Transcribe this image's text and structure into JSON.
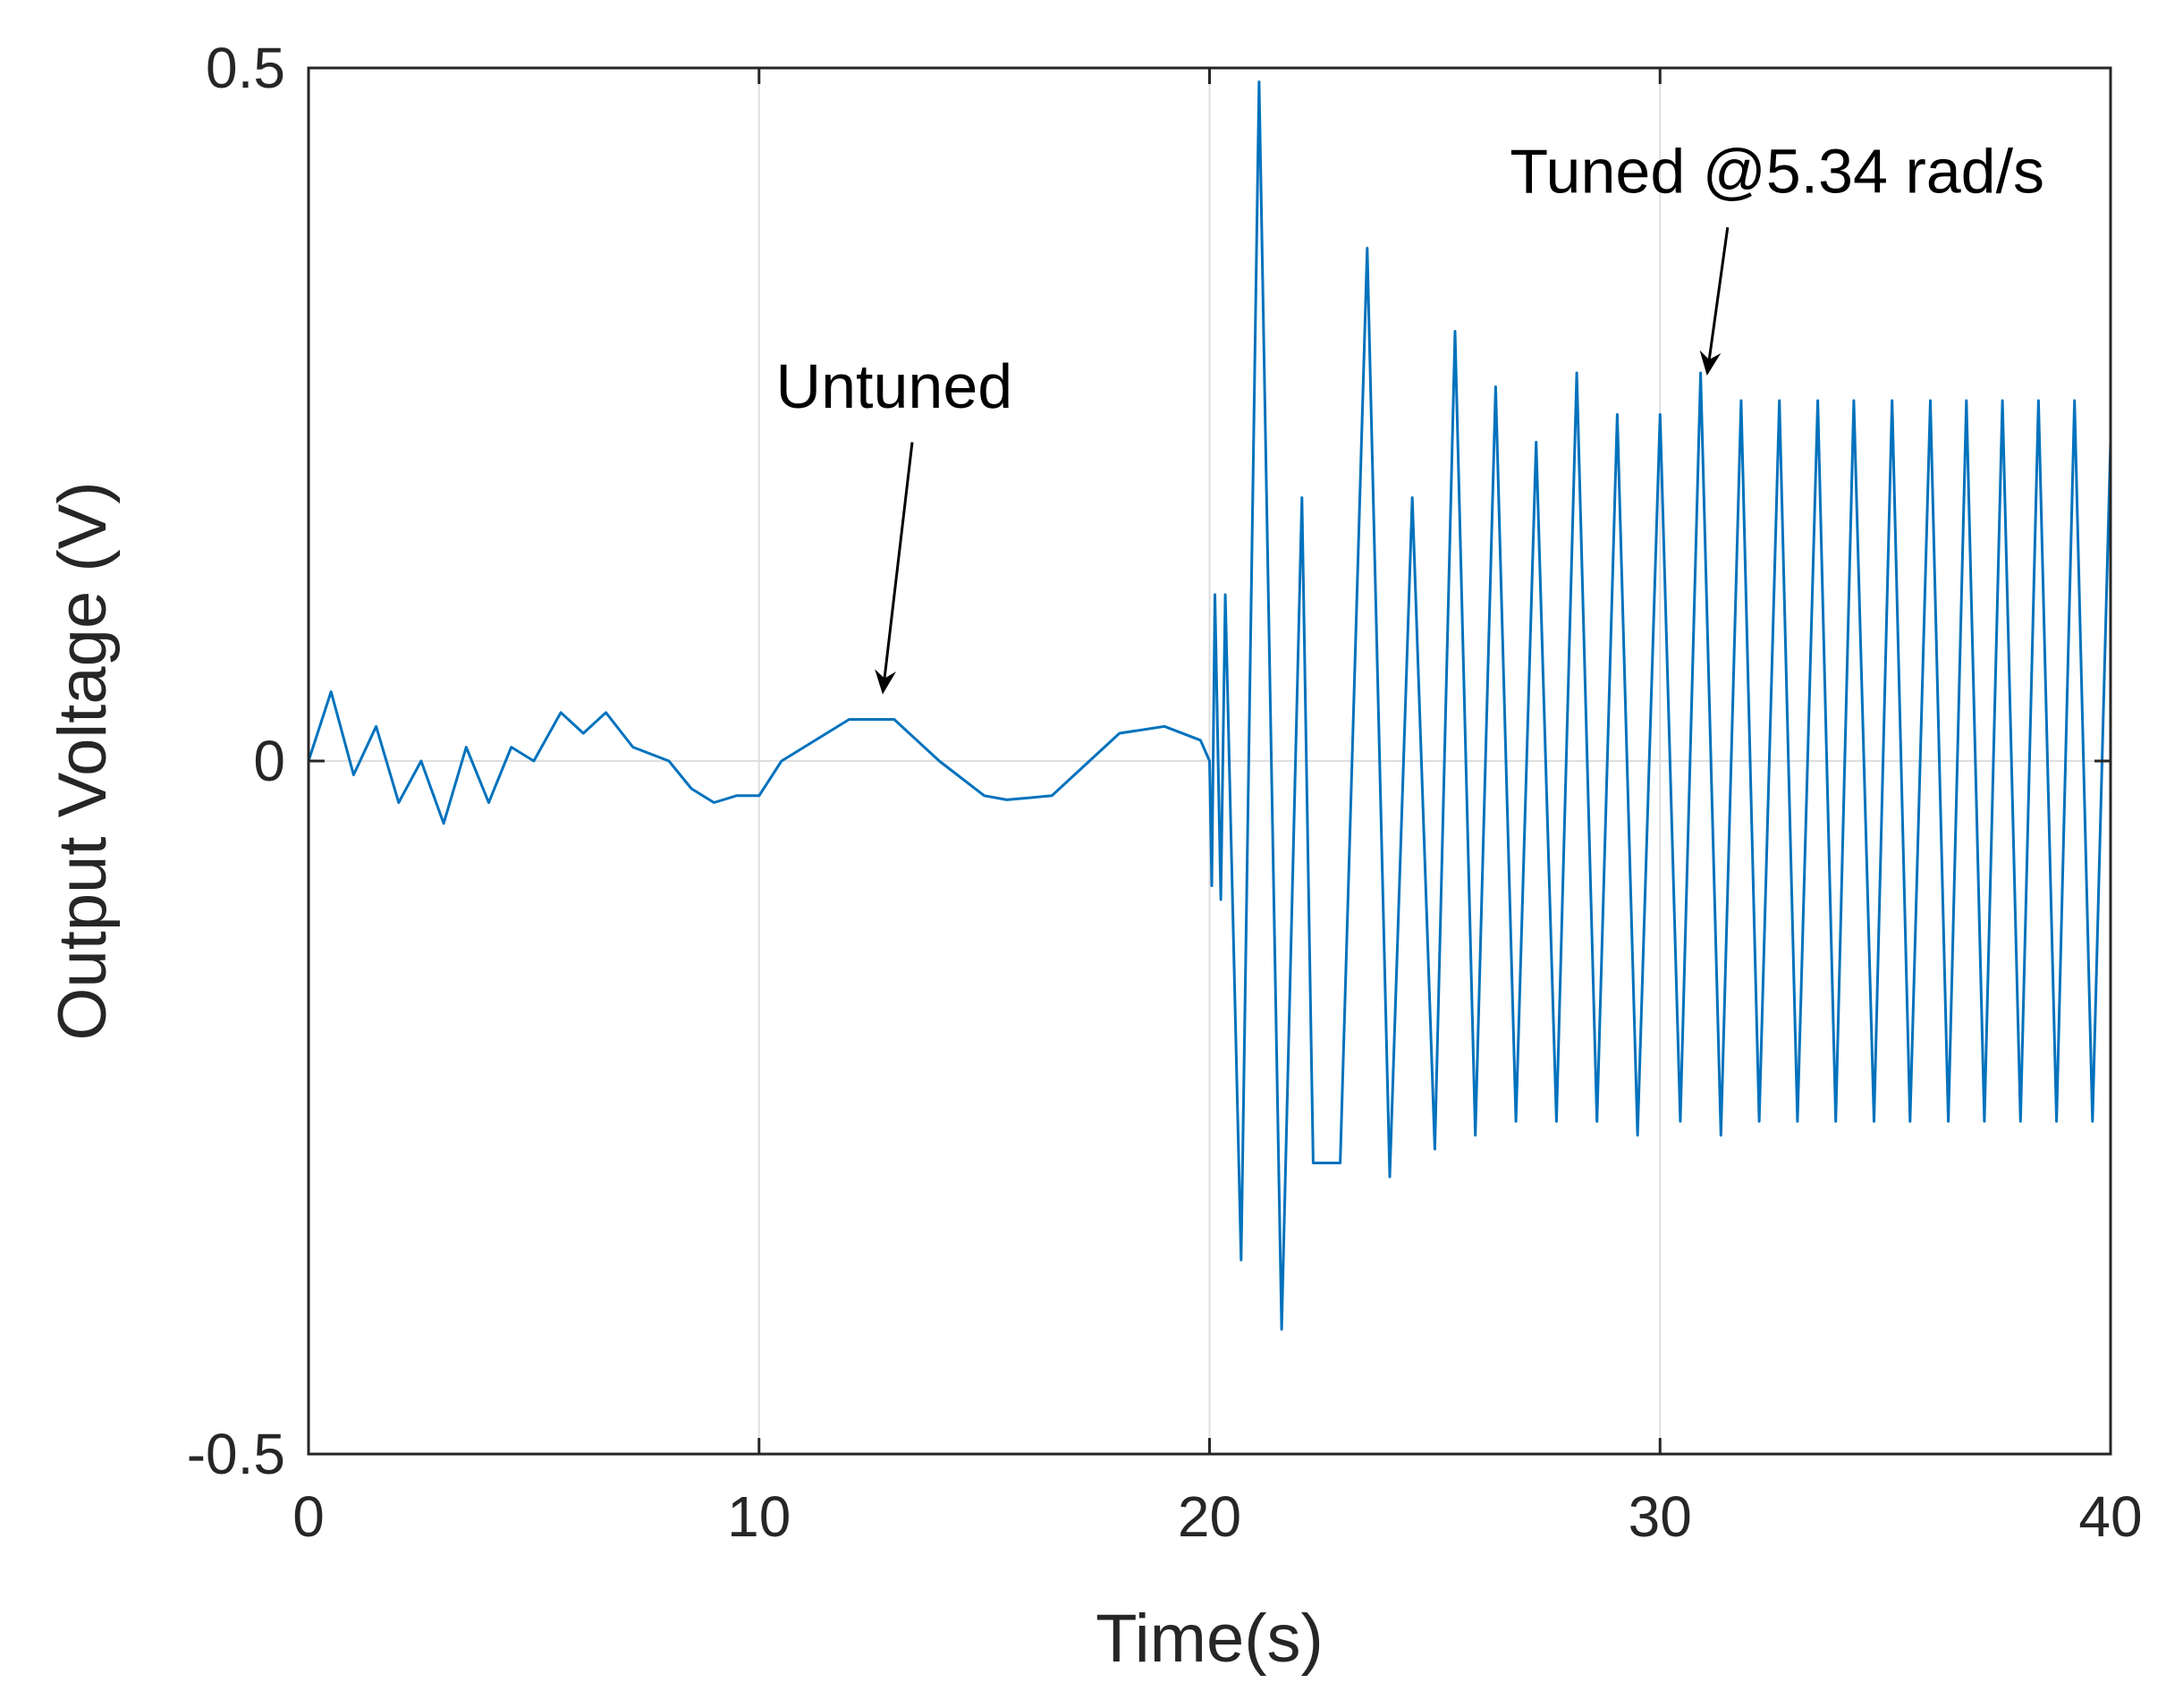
{
  "colors": {
    "series": "#0072BD",
    "axis": "#262626",
    "grid": "#DFDFDF",
    "annotation": "#000000"
  },
  "chart_data": {
    "type": "line",
    "title": "",
    "xlabel": "Time(s)",
    "ylabel": "Output Voltage (V)",
    "xlim": [
      0,
      40
    ],
    "ylim": [
      -0.5,
      0.5
    ],
    "xticks": [
      0,
      10,
      20,
      30,
      40
    ],
    "xtick_labels": [
      "0",
      "10",
      "20",
      "30",
      "40"
    ],
    "yticks": [
      -0.5,
      0,
      0.5
    ],
    "ytick_labels": [
      "-0.5",
      "0",
      "0.5"
    ],
    "grid": true,
    "series": [
      {
        "name": "Output Voltage",
        "x": [
          0,
          0.5,
          1.0,
          1.5,
          2.0,
          2.5,
          3.0,
          3.5,
          4.0,
          4.5,
          5.0,
          5.6,
          6.1,
          6.6,
          7.2,
          8.0,
          8.5,
          9.0,
          9.5,
          10.0,
          10.5,
          11.0,
          12.0,
          13.0,
          14.0,
          15.0,
          15.5,
          16.5,
          17.0,
          18.0,
          19.0,
          19.8,
          20.0,
          20.05,
          20.12,
          20.25,
          20.35,
          20.7,
          21.1,
          21.6,
          22.05,
          22.3,
          22.9,
          23.5,
          24.0,
          24.5,
          25.0,
          25.45,
          25.9,
          26.35,
          26.8,
          27.25,
          27.7,
          28.15,
          28.6,
          29.05,
          29.5,
          30.0,
          30.45,
          30.9,
          31.35,
          31.8,
          32.2,
          32.65,
          33.05,
          33.5,
          33.9,
          34.3,
          34.75,
          35.15,
          35.55,
          36.0,
          36.4,
          36.8,
          37.2,
          37.6,
          38.0,
          38.4,
          38.8,
          39.2,
          39.6,
          40.0
        ],
        "y": [
          0.0,
          0.05,
          -0.01,
          0.025,
          -0.03,
          0.0,
          -0.045,
          0.01,
          -0.03,
          0.01,
          0.0,
          0.035,
          0.02,
          0.035,
          0.01,
          0.0,
          -0.02,
          -0.03,
          -0.025,
          -0.025,
          0.0,
          0.01,
          0.03,
          0.03,
          0.0,
          -0.025,
          -0.028,
          -0.025,
          -0.01,
          0.02,
          0.025,
          0.015,
          0.0,
          -0.09,
          0.12,
          -0.1,
          0.12,
          -0.36,
          0.49,
          -0.41,
          0.19,
          -0.29,
          -0.29,
          0.37,
          -0.3,
          0.19,
          -0.28,
          0.31,
          -0.27,
          0.27,
          -0.26,
          0.23,
          -0.26,
          0.28,
          -0.26,
          0.25,
          -0.27,
          0.25,
          -0.26,
          0.28,
          -0.27,
          0.26,
          -0.26,
          0.26,
          -0.26,
          0.26,
          -0.26,
          0.26,
          -0.26,
          0.26,
          -0.26,
          0.26,
          -0.26,
          0.26,
          -0.26,
          0.26,
          -0.26,
          0.26,
          -0.26,
          0.26,
          -0.26,
          0.23
        ]
      }
    ],
    "annotations": [
      {
        "text": "Untuned",
        "text_anchor_data": [
          13.0,
          0.255
        ],
        "arrow_from_data": [
          13.4,
          0.23
        ],
        "arrow_to_data": [
          12.75,
          0.05
        ]
      },
      {
        "text": "Tuned @5.34 rad/s",
        "text_anchor_data": [
          32.6,
          0.41
        ],
        "arrow_from_data": [
          31.5,
          0.385
        ],
        "arrow_to_data": [
          31.05,
          0.28
        ]
      }
    ]
  }
}
